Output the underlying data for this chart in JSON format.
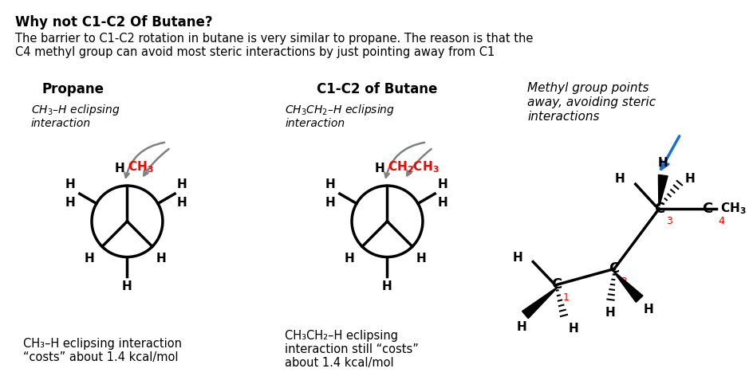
{
  "title": "Why not C1-C2 Of Butane?",
  "subtitle_line1": "The barrier to C1-C2 rotation in butane is very similar to propane. The reason is that the",
  "subtitle_line2": "C4 methyl group can avoid most steric interactions by just pointing away from C1",
  "bg_color": "#ffffff",
  "text_color": "#000000",
  "red_color": "#ff0000",
  "blue_color": "#1a6fd4",
  "gray_color": "#888888",
  "section1_title": "Propane",
  "section2_title": "C1-C2 of Butane",
  "section3_note_line1": "Methyl group points",
  "section3_note_line2": "away, avoiding steric",
  "section3_note_line3": "interactions",
  "caption1_line1": "CH₃–H eclipsing interaction",
  "caption1_line2": "“costs” about 1.4 kcal/mol",
  "caption2_line1": "CH₃CH₂–H eclipsing",
  "caption2_line2": "interaction still “costs”",
  "caption2_line3": "about 1.4 kcal/mol"
}
